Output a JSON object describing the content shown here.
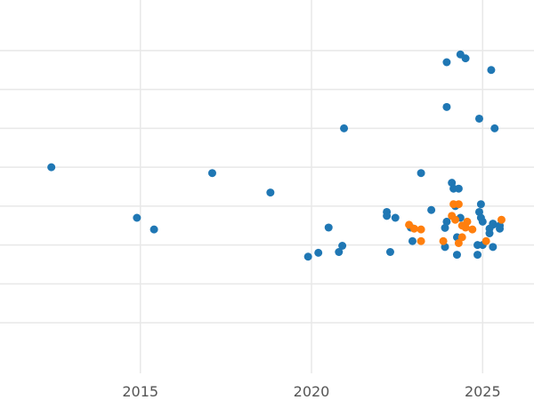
{
  "chart_data": {
    "type": "scatter",
    "title": "",
    "xlabel": "",
    "ylabel": "",
    "xlim": [
      2010.9,
      2026.5
    ],
    "ylim": [
      -0.63,
      0.33
    ],
    "grid": true,
    "legend": "none",
    "x_ticks": [
      2015,
      2020,
      2025
    ],
    "x_tick_labels": [
      "2015",
      "2020",
      "2025"
    ],
    "y_gridlines": [
      -0.5,
      -0.4,
      -0.3,
      -0.2,
      -0.1,
      0.0,
      0.1,
      0.2
    ],
    "series": [
      {
        "color": "#1f77b4",
        "points": [
          [
            2012.4,
            -0.1
          ],
          [
            2014.9,
            -0.23
          ],
          [
            2015.4,
            -0.26
          ],
          [
            2017.1,
            -0.115
          ],
          [
            2018.8,
            -0.165
          ],
          [
            2019.9,
            -0.33
          ],
          [
            2020.2,
            -0.32
          ],
          [
            2020.5,
            -0.255
          ],
          [
            2020.8,
            -0.318
          ],
          [
            2020.9,
            -0.302
          ],
          [
            2020.95,
            0.0
          ],
          [
            2022.2,
            -0.215
          ],
          [
            2022.2,
            -0.225
          ],
          [
            2022.3,
            -0.318
          ],
          [
            2022.45,
            -0.23
          ],
          [
            2022.9,
            -0.255
          ],
          [
            2022.95,
            -0.29
          ],
          [
            2023.2,
            -0.115
          ],
          [
            2023.5,
            -0.21
          ],
          [
            2023.9,
            -0.305
          ],
          [
            2023.9,
            -0.256
          ],
          [
            2023.95,
            -0.24
          ],
          [
            2023.95,
            0.17
          ],
          [
            2023.95,
            0.055
          ],
          [
            2024.1,
            -0.14
          ],
          [
            2024.15,
            -0.155
          ],
          [
            2024.2,
            -0.2
          ],
          [
            2024.25,
            -0.325
          ],
          [
            2024.25,
            -0.28
          ],
          [
            2024.3,
            -0.155
          ],
          [
            2024.35,
            -0.23
          ],
          [
            2024.35,
            0.19
          ],
          [
            2024.5,
            0.18
          ],
          [
            2024.85,
            -0.3
          ],
          [
            2024.85,
            -0.325
          ],
          [
            2024.9,
            -0.215
          ],
          [
            2024.9,
            0.025
          ],
          [
            2024.95,
            -0.23
          ],
          [
            2024.95,
            -0.195
          ],
          [
            2025.0,
            -0.24
          ],
          [
            2025.0,
            -0.3
          ],
          [
            2025.2,
            -0.258
          ],
          [
            2025.2,
            -0.27
          ],
          [
            2025.25,
            0.15
          ],
          [
            2025.3,
            -0.245
          ],
          [
            2025.3,
            -0.305
          ],
          [
            2025.35,
            0.0
          ],
          [
            2025.3,
            -0.248
          ],
          [
            2025.5,
            -0.25
          ],
          [
            2025.5,
            -0.258
          ]
        ]
      },
      {
        "color": "#ff7f0e",
        "points": [
          [
            2022.85,
            -0.248
          ],
          [
            2023.0,
            -0.258
          ],
          [
            2023.2,
            -0.26
          ],
          [
            2023.2,
            -0.29
          ],
          [
            2023.85,
            -0.29
          ],
          [
            2024.1,
            -0.225
          ],
          [
            2024.15,
            -0.195
          ],
          [
            2024.2,
            -0.235
          ],
          [
            2024.3,
            -0.295
          ],
          [
            2024.3,
            -0.195
          ],
          [
            2024.4,
            -0.28
          ],
          [
            2024.4,
            -0.25
          ],
          [
            2024.55,
            -0.24
          ],
          [
            2024.5,
            -0.255
          ],
          [
            2024.7,
            -0.26
          ],
          [
            2025.1,
            -0.29
          ],
          [
            2025.55,
            -0.235
          ]
        ]
      }
    ]
  }
}
